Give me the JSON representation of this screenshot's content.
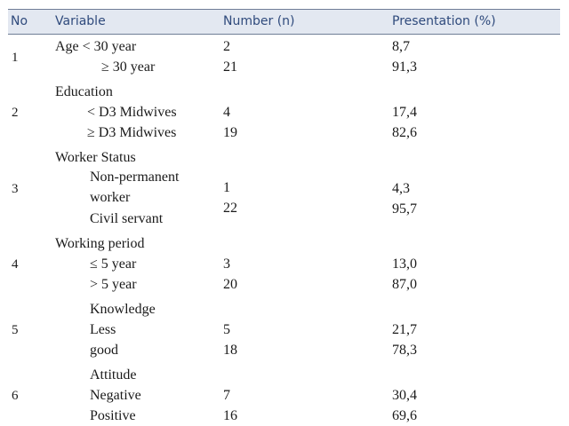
{
  "table": {
    "headers": [
      "No",
      "Variable",
      "Number (n)",
      "Presentation (%)"
    ],
    "rows": [
      {
        "no": "1",
        "variable": "Age < 30 year",
        "sub": [
          {
            "label": "",
            "n": "2",
            "pct": "8,7"
          },
          {
            "label": "≥ 30 year",
            "n": "21",
            "pct": "91,3"
          }
        ]
      },
      {
        "no": "2",
        "variable": "Education",
        "sub": [
          {
            "label": "< D3 Midwives",
            "n": "4",
            "pct": "17,4"
          },
          {
            "label": "≥ D3 Midwives",
            "n": "19",
            "pct": "82,6"
          }
        ]
      },
      {
        "no": "3",
        "variable": "Worker Status",
        "sub": [
          {
            "label": "Non-permanent",
            "label2": "worker",
            "n": "1",
            "pct": "4,3"
          },
          {
            "label": "Civil servant",
            "n": "22",
            "pct": "95,7"
          }
        ]
      },
      {
        "no": "4",
        "variable": "Working period",
        "sub": [
          {
            "label": "≤ 5 year",
            "n": "3",
            "pct": "13,0"
          },
          {
            "label": "> 5 year",
            "n": "20",
            "pct": "87,0"
          }
        ]
      },
      {
        "no": "5",
        "variable": "Knowledge",
        "sub": [
          {
            "label": "Less",
            "n": "5",
            "pct": "21,7"
          },
          {
            "label": "good",
            "n": "18",
            "pct": "78,3"
          }
        ]
      },
      {
        "no": "6",
        "variable": "Attitude",
        "sub": [
          {
            "label": "Negative",
            "n": "7",
            "pct": "30,4"
          },
          {
            "label": "Positive",
            "n": "16",
            "pct": "69,6"
          }
        ]
      }
    ]
  }
}
